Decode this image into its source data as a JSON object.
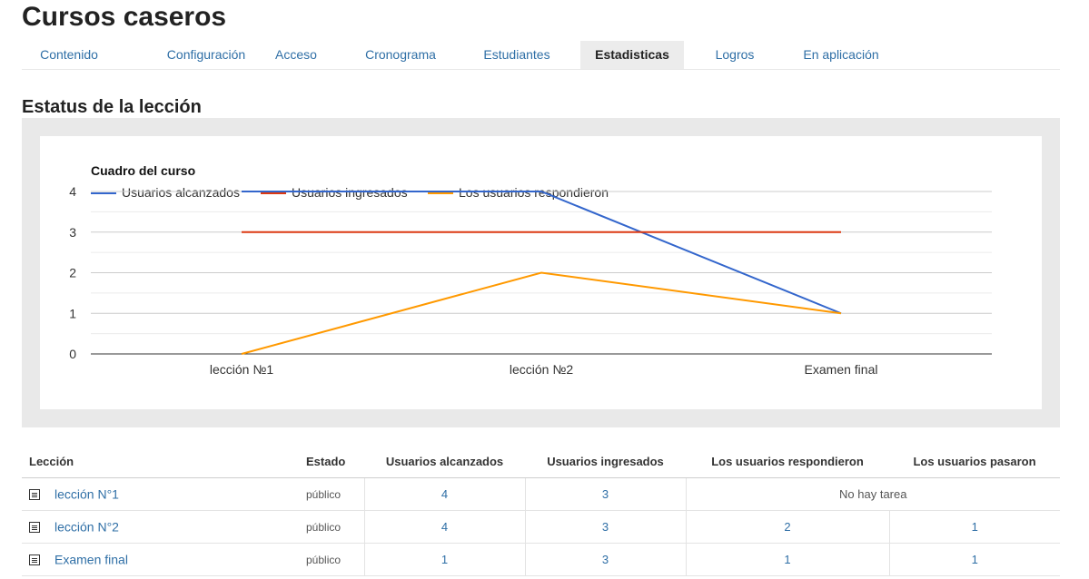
{
  "header": {
    "title": "Cursos caseros"
  },
  "tabs": [
    {
      "label": "Contenido"
    },
    {
      "label": "Configuración"
    },
    {
      "label": "Acceso"
    },
    {
      "label": "Cronograma"
    },
    {
      "label": "Estudiantes"
    },
    {
      "label": "Estadisticas",
      "active": true
    },
    {
      "label": "Logros"
    },
    {
      "label": "En aplicación"
    }
  ],
  "section": {
    "title": "Estatus de la lección"
  },
  "chart_data": {
    "type": "line",
    "title": "Cuadro del curso",
    "categories": [
      "lección №1",
      "lección №2",
      "Examen final"
    ],
    "series": [
      {
        "name": "Usuarios alcanzados",
        "color": "#3366cc",
        "values": [
          4,
          4,
          1
        ]
      },
      {
        "name": "Usuarios ingresados",
        "color": "#dc3912",
        "values": [
          3,
          3,
          3
        ]
      },
      {
        "name": "Los usuarios respondieron",
        "color": "#ff9900",
        "values": [
          0,
          2,
          1
        ]
      }
    ],
    "y_ticks": [
      "0",
      "1",
      "2",
      "3",
      "4"
    ],
    "ylim": [
      0,
      4
    ],
    "legend": "top-left",
    "grid": true
  },
  "table": {
    "headers": {
      "lesson": "Lección",
      "state": "Estado",
      "reached": "Usuarios alcanzados",
      "entered": "Usuarios ingresados",
      "answered": "Los usuarios respondieron",
      "passed": "Los usuarios pasaron"
    },
    "rows": [
      {
        "name": "lección N°1",
        "state": "público",
        "reached": "4",
        "entered": "3",
        "answered": "No hay tarea",
        "passed": ""
      },
      {
        "name": "lección N°2",
        "state": "público",
        "reached": "4",
        "entered": "3",
        "answered": "2",
        "passed": "1"
      },
      {
        "name": "Examen final",
        "state": "público",
        "reached": "1",
        "entered": "3",
        "answered": "1",
        "passed": "1"
      }
    ]
  }
}
